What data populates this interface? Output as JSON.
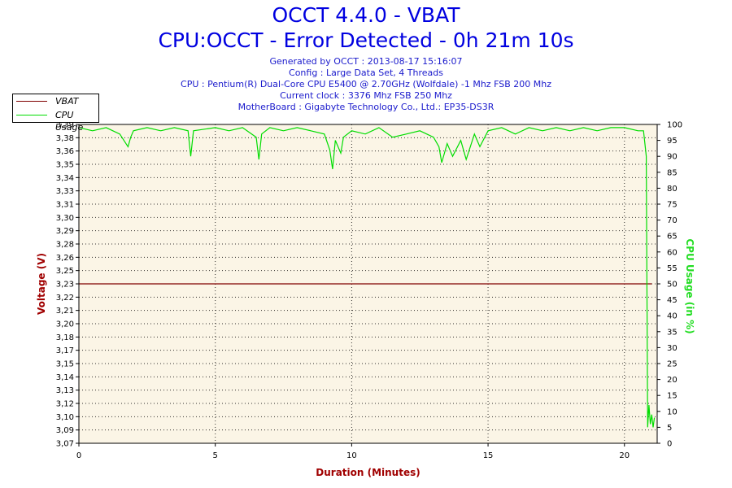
{
  "header": {
    "title": "OCCT 4.4.0 - VBAT",
    "subtitle": "CPU:OCCT - Error Detected - 0h 21m 10s",
    "info_lines": [
      "Generated by OCCT : 2013-08-17 15:16:07",
      "Config : Large Data Set, 4 Threads",
      "CPU : Pentium(R) Dual-Core CPU E5400 @ 2.70GHz (Wolfdale) -1 Mhz FSB 200 Mhz",
      "Current clock : 3376 Mhz FSB 250 Mhz",
      "MotherBoard : Gigabyte Technology Co., Ltd.: EP35-DS3R"
    ]
  },
  "legend": {
    "items": [
      {
        "label": "VBAT",
        "color": "#800000"
      },
      {
        "label": "CPU Usage",
        "color": "#00dd00"
      }
    ]
  },
  "chart_data": {
    "type": "line",
    "xlabel": "Duration (Minutes)",
    "ylabel": "Voltage (V)",
    "y2label": "CPU Usage (in %)",
    "xlim": [
      0,
      21.2
    ],
    "x_ticks": [
      "0",
      "5",
      "10",
      "15",
      "20"
    ],
    "ylim": [
      3.07,
      3.39
    ],
    "y_ticks": [
      "3,07",
      "3,09",
      "3,10",
      "3,12",
      "3,13",
      "3,14",
      "3,15",
      "3,17",
      "3,18",
      "3,20",
      "3,21",
      "3,22",
      "3,23",
      "3,25",
      "3,26",
      "3,28",
      "3,29",
      "3,30",
      "3,31",
      "3,33",
      "3,34",
      "3,35",
      "3,36",
      "3,38",
      "3,39"
    ],
    "y2lim": [
      0,
      100
    ],
    "y2_ticks": [
      "0",
      "5",
      "10",
      "15",
      "20",
      "25",
      "30",
      "35",
      "40",
      "45",
      "50",
      "55",
      "60",
      "65",
      "70",
      "75",
      "80",
      "85",
      "90",
      "95",
      "100"
    ],
    "grid": true,
    "background": "#fbf5e6",
    "series": [
      {
        "name": "VBAT",
        "axis": "left",
        "color": "#800000",
        "x": [
          0,
          21.0
        ],
        "values": [
          3.23,
          3.23
        ]
      },
      {
        "name": "CPU Usage",
        "axis": "right",
        "color": "#00dd00",
        "x": [
          0,
          0.5,
          1,
          1.5,
          1.8,
          1.9,
          2.0,
          2.5,
          3,
          3.5,
          4.0,
          4.1,
          4.2,
          5,
          5.5,
          6,
          6.5,
          6.6,
          6.7,
          7,
          7.5,
          8,
          8.5,
          9,
          9.2,
          9.3,
          9.4,
          9.6,
          9.7,
          10,
          10.5,
          11,
          11.5,
          12,
          12.5,
          13,
          13.2,
          13.3,
          13.5,
          13.7,
          14,
          14.2,
          14.5,
          14.7,
          15,
          15.5,
          16,
          16.5,
          17,
          17.5,
          18,
          18.5,
          19,
          19.5,
          20,
          20.5,
          20.7,
          20.8,
          20.85,
          20.9,
          20.95,
          21.0,
          21.05,
          21.1
        ],
        "values": [
          99,
          98,
          99,
          97,
          93,
          96,
          98,
          99,
          98,
          99,
          98,
          90,
          98,
          99,
          98,
          99,
          96,
          89,
          97,
          99,
          98,
          99,
          98,
          97,
          92,
          86,
          95,
          91,
          96,
          98,
          97,
          99,
          96,
          97,
          98,
          96,
          93,
          88,
          94,
          90,
          95,
          89,
          97,
          93,
          98,
          99,
          97,
          99,
          98,
          99,
          98,
          99,
          98,
          99,
          99,
          98,
          98,
          90,
          5,
          12,
          6,
          9,
          5,
          8
        ]
      }
    ]
  }
}
